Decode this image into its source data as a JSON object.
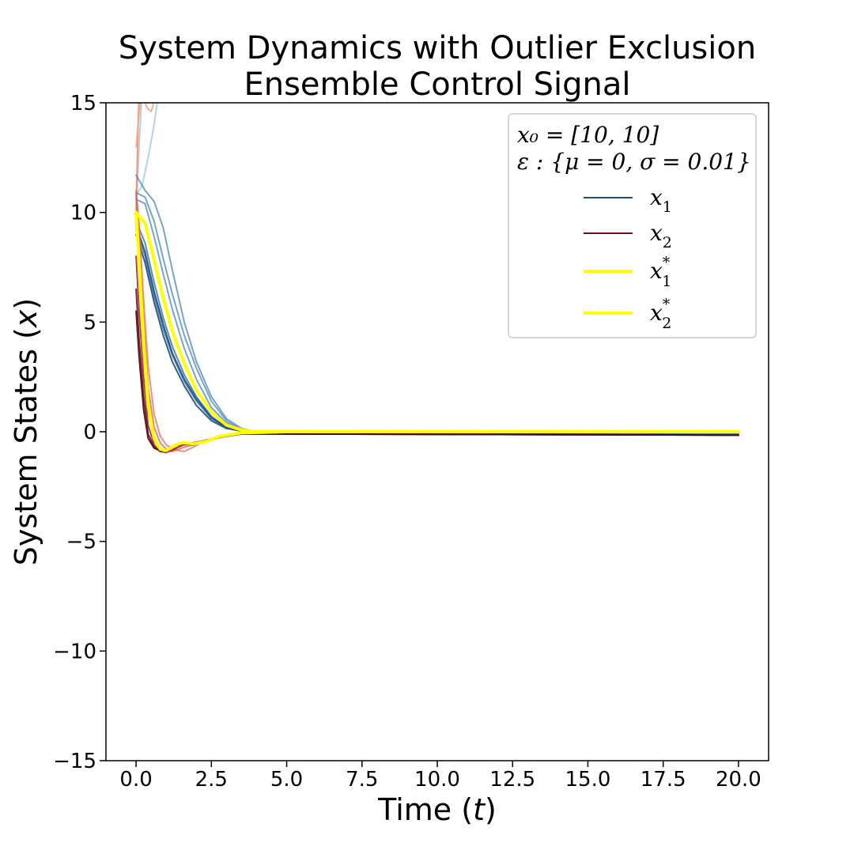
{
  "chart_data": {
    "type": "line",
    "title": [
      "System Dynamics with Outlier Exclusion",
      "Ensemble Control Signal"
    ],
    "xlabel": "Time (t)",
    "ylabel": "System States (x)",
    "xlim": [
      -1.0,
      21.0
    ],
    "ylim": [
      -15,
      15
    ],
    "xticks": [
      0.0,
      2.5,
      5.0,
      7.5,
      10.0,
      12.5,
      15.0,
      17.5,
      20.0
    ],
    "xtick_labels": [
      "0.0",
      "2.5",
      "5.0",
      "7.5",
      "10.0",
      "12.5",
      "15.0",
      "17.5",
      "20.0"
    ],
    "yticks": [
      -15,
      -10,
      -5,
      0,
      5,
      10,
      15
    ],
    "ytick_labels": [
      "−15",
      "−10",
      "−5",
      "0",
      "5",
      "10",
      "15"
    ],
    "grid": false,
    "legend": {
      "placement": "top-right",
      "header": [
        "x₀ = [10, 10]",
        "ε : {μ = 0, σ = 0.01}"
      ],
      "entries": [
        {
          "name": "x",
          "sub": "1",
          "sup": "",
          "color": "#1f4e7a"
        },
        {
          "name": "x",
          "sub": "2",
          "sup": "",
          "color": "#6b1020"
        },
        {
          "name": "x",
          "sub": "1",
          "sup": "*",
          "color": "#ffff00"
        },
        {
          "name": "x",
          "sub": "2",
          "sup": "*",
          "color": "#ffff00"
        }
      ]
    },
    "series": [
      {
        "key": "x1_outlier_a",
        "color": "#9ecae1",
        "opacity": 0.8,
        "width": 2,
        "x": [
          0.0,
          0.2,
          0.4,
          0.6,
          0.8
        ],
        "y": [
          10.8,
          11.2,
          12.5,
          14.0,
          16.0
        ]
      },
      {
        "key": "x1_outlier_b",
        "color": "#9ecae1",
        "opacity": 0.8,
        "width": 2,
        "x": [
          0.0,
          0.1,
          0.2,
          0.3
        ],
        "y": [
          10.0,
          13.0,
          15.5,
          17.0
        ]
      },
      {
        "key": "x2_outlier_a",
        "color": "#ef8a62",
        "opacity": 0.85,
        "width": 2,
        "x": [
          0.0,
          0.05,
          0.1,
          0.2
        ],
        "y": [
          10.0,
          13.0,
          15.5,
          17.0
        ]
      },
      {
        "key": "x2_outlier_b",
        "color": "#f4a582",
        "opacity": 0.85,
        "width": 2,
        "x": [
          0.0,
          0.1,
          0.2,
          0.35,
          0.5,
          0.7
        ],
        "y": [
          13.0,
          14.5,
          15.5,
          14.8,
          14.6,
          15.5
        ]
      },
      {
        "key": "x1_run_1",
        "color": "#4a86bd",
        "opacity": 0.75,
        "width": 2,
        "x": [
          0.0,
          0.3,
          0.6,
          0.9,
          1.2,
          1.6,
          2.0,
          2.5,
          3.0,
          3.5,
          4.0,
          5.0,
          20.0
        ],
        "y": [
          11.7,
          11.0,
          10.5,
          9.3,
          7.4,
          5.0,
          3.2,
          1.6,
          0.6,
          0.15,
          0.0,
          -0.05,
          -0.1
        ]
      },
      {
        "key": "x1_run_2",
        "color": "#4a86bd",
        "opacity": 0.75,
        "width": 2,
        "x": [
          0.0,
          0.3,
          0.6,
          0.9,
          1.2,
          1.6,
          2.0,
          2.5,
          3.0,
          3.5,
          4.0,
          5.0,
          20.0
        ],
        "y": [
          10.9,
          10.7,
          9.6,
          7.9,
          6.3,
          4.4,
          2.9,
          1.4,
          0.5,
          0.1,
          0.0,
          -0.05,
          -0.1
        ]
      },
      {
        "key": "x1_run_3",
        "color": "#4a86bd",
        "opacity": 0.75,
        "width": 2,
        "x": [
          0.0,
          0.3,
          0.6,
          0.9,
          1.2,
          1.6,
          2.0,
          2.5,
          3.0,
          3.5,
          4.0,
          5.0,
          20.0
        ],
        "y": [
          10.6,
          10.4,
          8.9,
          7.2,
          5.6,
          3.8,
          2.4,
          1.1,
          0.4,
          0.08,
          0.0,
          -0.05,
          -0.1
        ]
      },
      {
        "key": "x1_run_4",
        "color": "#2f6ea6",
        "opacity": 0.8,
        "width": 2,
        "x": [
          0.0,
          0.3,
          0.6,
          0.9,
          1.2,
          1.6,
          2.0,
          2.5,
          3.0,
          3.5,
          4.0,
          5.0,
          20.0
        ],
        "y": [
          9.6,
          8.6,
          6.8,
          5.2,
          3.9,
          2.6,
          1.6,
          0.7,
          0.2,
          0.05,
          0.0,
          -0.05,
          -0.15
        ]
      },
      {
        "key": "x1_run_5",
        "color": "#2f6ea6",
        "opacity": 0.8,
        "width": 2,
        "x": [
          0.0,
          0.3,
          0.6,
          0.9,
          1.2,
          1.6,
          2.0,
          2.5,
          3.0,
          3.5,
          4.0,
          5.0,
          20.0
        ],
        "y": [
          9.2,
          8.0,
          6.2,
          4.7,
          3.5,
          2.3,
          1.4,
          0.6,
          0.2,
          0.04,
          0.0,
          -0.05,
          -0.15
        ]
      },
      {
        "key": "x1_run_6",
        "color": "#1f4e7a",
        "opacity": 0.9,
        "width": 2,
        "x": [
          0.0,
          0.3,
          0.6,
          0.9,
          1.2,
          1.6,
          2.0,
          2.5,
          3.0,
          3.5,
          4.0,
          5.0,
          20.0
        ],
        "y": [
          9.0,
          7.7,
          5.9,
          4.4,
          3.2,
          2.1,
          1.2,
          0.5,
          0.15,
          0.03,
          0.0,
          -0.05,
          -0.15
        ]
      },
      {
        "key": "x1_run_7",
        "color": "#1f4e7a",
        "opacity": 0.9,
        "width": 2,
        "x": [
          0.0,
          0.3,
          0.6,
          0.9,
          1.2,
          1.6,
          2.0,
          2.5,
          3.0,
          3.5,
          4.0,
          5.0,
          20.0
        ],
        "y": [
          9.4,
          8.2,
          6.4,
          4.9,
          3.6,
          2.4,
          1.5,
          0.65,
          0.2,
          0.04,
          0.0,
          -0.05,
          -0.15
        ]
      },
      {
        "key": "x2_run_1",
        "color": "#e06c5c",
        "opacity": 0.75,
        "width": 2,
        "x": [
          0.0,
          0.1,
          0.25,
          0.4,
          0.6,
          0.8,
          1.0,
          1.2,
          1.4,
          1.6,
          1.9,
          2.3,
          2.8,
          3.5,
          5.0,
          20.0
        ],
        "y": [
          11.0,
          9.5,
          6.0,
          3.0,
          0.8,
          -0.2,
          -0.6,
          -0.75,
          -0.85,
          -0.9,
          -0.7,
          -0.4,
          -0.2,
          -0.1,
          -0.1,
          -0.15
        ]
      },
      {
        "key": "x2_run_2",
        "color": "#d6604d",
        "opacity": 0.75,
        "width": 2,
        "x": [
          0.0,
          0.1,
          0.25,
          0.4,
          0.6,
          0.8,
          1.0,
          1.2,
          1.4,
          1.6,
          1.9,
          2.3,
          2.8,
          3.5,
          5.0,
          20.0
        ],
        "y": [
          10.8,
          8.8,
          5.0,
          2.0,
          0.2,
          -0.5,
          -0.8,
          -0.9,
          -0.8,
          -0.7,
          -0.6,
          -0.4,
          -0.2,
          -0.1,
          -0.1,
          -0.15
        ]
      },
      {
        "key": "x2_run_3",
        "color": "#c0392b",
        "opacity": 0.8,
        "width": 2,
        "x": [
          0.0,
          0.1,
          0.25,
          0.4,
          0.6,
          0.8,
          1.0,
          1.2,
          1.4,
          1.6,
          1.9,
          2.3,
          2.8,
          3.5,
          5.0,
          20.0
        ],
        "y": [
          10.0,
          7.5,
          3.8,
          1.0,
          -0.4,
          -0.8,
          -0.9,
          -0.8,
          -0.7,
          -0.6,
          -0.55,
          -0.4,
          -0.2,
          -0.1,
          -0.1,
          -0.15
        ]
      },
      {
        "key": "x2_run_4",
        "color": "#a32032",
        "opacity": 0.85,
        "width": 2,
        "x": [
          0.0,
          0.1,
          0.25,
          0.4,
          0.6,
          0.8,
          1.0,
          1.2,
          1.4,
          1.6,
          1.9,
          2.3,
          2.8,
          3.5,
          5.0,
          20.0
        ],
        "y": [
          8.0,
          5.5,
          2.5,
          0.3,
          -0.6,
          -0.9,
          -0.95,
          -0.85,
          -0.7,
          -0.55,
          -0.55,
          -0.45,
          -0.25,
          -0.1,
          -0.1,
          -0.15
        ]
      },
      {
        "key": "x2_run_5",
        "color": "#6b1020",
        "opacity": 0.9,
        "width": 2,
        "x": [
          0.0,
          0.1,
          0.25,
          0.4,
          0.6,
          0.8,
          1.0,
          1.2,
          1.4,
          1.6,
          1.9,
          2.3,
          2.8,
          3.5,
          5.0,
          20.0
        ],
        "y": [
          6.5,
          4.2,
          1.6,
          -0.1,
          -0.7,
          -0.9,
          -0.85,
          -0.7,
          -0.6,
          -0.55,
          -0.6,
          -0.45,
          -0.25,
          -0.1,
          -0.1,
          -0.15
        ]
      },
      {
        "key": "x2_run_6",
        "color": "#4a0a14",
        "opacity": 0.9,
        "width": 2,
        "x": [
          0.0,
          0.1,
          0.25,
          0.4,
          0.6,
          0.8,
          1.0,
          1.2,
          1.4,
          1.6,
          1.9,
          2.3,
          2.8,
          3.5,
          5.0,
          20.0
        ],
        "y": [
          5.5,
          3.4,
          1.0,
          -0.3,
          -0.75,
          -0.85,
          -0.8,
          -0.7,
          -0.6,
          -0.55,
          -0.5,
          -0.4,
          -0.2,
          -0.1,
          -0.1,
          -0.15
        ]
      },
      {
        "key": "x1_star",
        "color": "#ffff00",
        "opacity": 1,
        "width": 4,
        "x": [
          0.0,
          0.3,
          0.6,
          0.9,
          1.2,
          1.6,
          2.0,
          2.5,
          3.0,
          3.5,
          4.0,
          5.0,
          20.0
        ],
        "y": [
          10.0,
          9.5,
          7.8,
          6.1,
          4.6,
          3.1,
          1.9,
          0.9,
          0.3,
          0.08,
          0.0,
          0.0,
          0.0
        ]
      },
      {
        "key": "x2_star",
        "color": "#ffff00",
        "opacity": 1,
        "width": 4,
        "x": [
          0.0,
          0.1,
          0.25,
          0.4,
          0.6,
          0.8,
          1.0,
          1.2,
          1.4,
          1.6,
          1.9,
          2.3,
          2.8,
          3.5,
          5.0,
          20.0
        ],
        "y": [
          10.0,
          7.8,
          4.0,
          1.2,
          -0.3,
          -0.8,
          -0.85,
          -0.7,
          -0.55,
          -0.5,
          -0.55,
          -0.45,
          -0.2,
          -0.05,
          0.0,
          0.0
        ]
      }
    ]
  }
}
